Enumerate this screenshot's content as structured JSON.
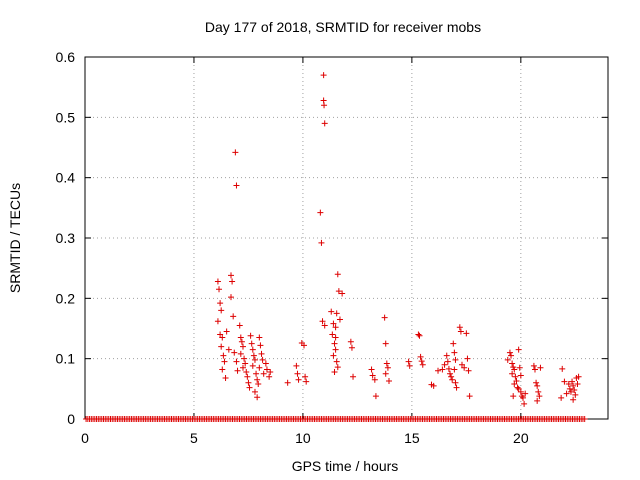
{
  "chart_data": {
    "type": "scatter",
    "title": "Day 177 of 2018, SRMTID for receiver mobs",
    "xlabel": "GPS time / hours",
    "ylabel": "SRMTID / TECUs",
    "xlim": [
      0,
      24
    ],
    "ylim": [
      0,
      0.6
    ],
    "x_ticks": [
      0,
      5,
      10,
      15,
      20
    ],
    "y_ticks": [
      0,
      0.1,
      0.2,
      0.3,
      0.4,
      0.5,
      0.6
    ],
    "grid": true,
    "marker": "+",
    "color": "#dd0000",
    "series": [
      {
        "name": "mobs",
        "baseline": {
          "x_start": 0.05,
          "x_end": 22.95,
          "x_step": 0.08,
          "y": 0
        },
        "points": [
          [
            6.1,
            0.228
          ],
          [
            6.15,
            0.215
          ],
          [
            6.2,
            0.192
          ],
          [
            6.25,
            0.18
          ],
          [
            6.1,
            0.162
          ],
          [
            6.2,
            0.14
          ],
          [
            6.3,
            0.135
          ],
          [
            6.25,
            0.12
          ],
          [
            6.35,
            0.105
          ],
          [
            6.4,
            0.095
          ],
          [
            6.3,
            0.082
          ],
          [
            6.45,
            0.068
          ],
          [
            6.5,
            0.145
          ],
          [
            6.6,
            0.115
          ],
          [
            6.7,
            0.238
          ],
          [
            6.75,
            0.228
          ],
          [
            6.7,
            0.202
          ],
          [
            6.8,
            0.17
          ],
          [
            6.9,
            0.442
          ],
          [
            6.95,
            0.387
          ],
          [
            6.85,
            0.11
          ],
          [
            6.95,
            0.095
          ],
          [
            7.0,
            0.08
          ],
          [
            7.1,
            0.155
          ],
          [
            7.15,
            0.135
          ],
          [
            7.2,
            0.128
          ],
          [
            7.25,
            0.12
          ],
          [
            7.15,
            0.108
          ],
          [
            7.3,
            0.1
          ],
          [
            7.35,
            0.092
          ],
          [
            7.25,
            0.085
          ],
          [
            7.4,
            0.078
          ],
          [
            7.45,
            0.07
          ],
          [
            7.5,
            0.06
          ],
          [
            7.55,
            0.052
          ],
          [
            7.6,
            0.138
          ],
          [
            7.65,
            0.125
          ],
          [
            7.7,
            0.115
          ],
          [
            7.75,
            0.105
          ],
          [
            7.8,
            0.098
          ],
          [
            7.7,
            0.088
          ],
          [
            7.85,
            0.075
          ],
          [
            7.9,
            0.065
          ],
          [
            7.95,
            0.058
          ],
          [
            8.0,
            0.135
          ],
          [
            8.05,
            0.122
          ],
          [
            8.1,
            0.108
          ],
          [
            7.8,
            0.045
          ],
          [
            7.9,
            0.036
          ],
          [
            8.0,
            0.085
          ],
          [
            8.15,
            0.098
          ],
          [
            8.2,
            0.075
          ],
          [
            8.3,
            0.092
          ],
          [
            8.35,
            0.082
          ],
          [
            8.45,
            0.07
          ],
          [
            8.5,
            0.078
          ],
          [
            9.3,
            0.06
          ],
          [
            9.7,
            0.088
          ],
          [
            9.75,
            0.075
          ],
          [
            9.8,
            0.065
          ],
          [
            9.95,
            0.126
          ],
          [
            10.05,
            0.122
          ],
          [
            10.1,
            0.07
          ],
          [
            10.15,
            0.062
          ],
          [
            10.8,
            0.342
          ],
          [
            10.85,
            0.292
          ],
          [
            10.95,
            0.57
          ],
          [
            10.95,
            0.528
          ],
          [
            10.97,
            0.52
          ],
          [
            11.0,
            0.49
          ],
          [
            10.9,
            0.162
          ],
          [
            11.0,
            0.155
          ],
          [
            11.3,
            0.178
          ],
          [
            11.4,
            0.158
          ],
          [
            11.35,
            0.14
          ],
          [
            11.5,
            0.135
          ],
          [
            11.45,
            0.125
          ],
          [
            11.5,
            0.115
          ],
          [
            11.4,
            0.105
          ],
          [
            11.55,
            0.095
          ],
          [
            11.6,
            0.086
          ],
          [
            11.45,
            0.078
          ],
          [
            11.6,
            0.24
          ],
          [
            11.65,
            0.212
          ],
          [
            11.55,
            0.175
          ],
          [
            11.7,
            0.165
          ],
          [
            11.5,
            0.152
          ],
          [
            11.8,
            0.208
          ],
          [
            12.2,
            0.128
          ],
          [
            12.25,
            0.118
          ],
          [
            12.3,
            0.07
          ],
          [
            13.15,
            0.082
          ],
          [
            13.2,
            0.072
          ],
          [
            13.3,
            0.065
          ],
          [
            13.35,
            0.038
          ],
          [
            13.75,
            0.168
          ],
          [
            13.8,
            0.125
          ],
          [
            13.85,
            0.092
          ],
          [
            13.9,
            0.085
          ],
          [
            13.8,
            0.075
          ],
          [
            13.95,
            0.063
          ],
          [
            14.85,
            0.095
          ],
          [
            14.9,
            0.088
          ],
          [
            15.3,
            0.14
          ],
          [
            15.35,
            0.138
          ],
          [
            15.4,
            0.103
          ],
          [
            15.45,
            0.096
          ],
          [
            15.5,
            0.09
          ],
          [
            15.9,
            0.057
          ],
          [
            16.0,
            0.055
          ],
          [
            16.2,
            0.08
          ],
          [
            16.4,
            0.082
          ],
          [
            16.5,
            0.09
          ],
          [
            16.6,
            0.105
          ],
          [
            16.65,
            0.095
          ],
          [
            16.7,
            0.083
          ],
          [
            16.75,
            0.075
          ],
          [
            16.8,
            0.07
          ],
          [
            16.85,
            0.065
          ],
          [
            16.9,
            0.125
          ],
          [
            16.95,
            0.11
          ],
          [
            17.0,
            0.098
          ],
          [
            16.95,
            0.082
          ],
          [
            17.0,
            0.06
          ],
          [
            17.05,
            0.052
          ],
          [
            17.2,
            0.152
          ],
          [
            17.25,
            0.145
          ],
          [
            17.3,
            0.09
          ],
          [
            17.4,
            0.085
          ],
          [
            17.5,
            0.142
          ],
          [
            17.55,
            0.1
          ],
          [
            17.6,
            0.08
          ],
          [
            17.65,
            0.038
          ],
          [
            19.4,
            0.098
          ],
          [
            19.5,
            0.11
          ],
          [
            19.55,
            0.105
          ],
          [
            19.6,
            0.092
          ],
          [
            19.65,
            0.086
          ],
          [
            19.7,
            0.082
          ],
          [
            19.6,
            0.075
          ],
          [
            19.75,
            0.07
          ],
          [
            19.8,
            0.063
          ],
          [
            19.7,
            0.058
          ],
          [
            19.85,
            0.052
          ],
          [
            19.9,
            0.115
          ],
          [
            19.95,
            0.085
          ],
          [
            20.0,
            0.072
          ],
          [
            19.9,
            0.05
          ],
          [
            20.0,
            0.045
          ],
          [
            20.05,
            0.038
          ],
          [
            20.1,
            0.035
          ],
          [
            20.15,
            0.025
          ],
          [
            20.2,
            0.042
          ],
          [
            19.65,
            0.038
          ],
          [
            20.6,
            0.088
          ],
          [
            20.65,
            0.082
          ],
          [
            20.7,
            0.06
          ],
          [
            20.75,
            0.055
          ],
          [
            20.8,
            0.045
          ],
          [
            20.85,
            0.038
          ],
          [
            20.75,
            0.03
          ],
          [
            20.9,
            0.085
          ],
          [
            21.9,
            0.083
          ],
          [
            22.0,
            0.062
          ],
          [
            22.2,
            0.058
          ],
          [
            22.25,
            0.05
          ],
          [
            22.3,
            0.045
          ],
          [
            22.35,
            0.062
          ],
          [
            22.4,
            0.055
          ],
          [
            22.45,
            0.048
          ],
          [
            22.5,
            0.04
          ],
          [
            22.4,
            0.032
          ],
          [
            22.55,
            0.068
          ],
          [
            22.6,
            0.058
          ],
          [
            22.65,
            0.07
          ],
          [
            22.1,
            0.042
          ],
          [
            21.85,
            0.035
          ]
        ]
      }
    ]
  }
}
